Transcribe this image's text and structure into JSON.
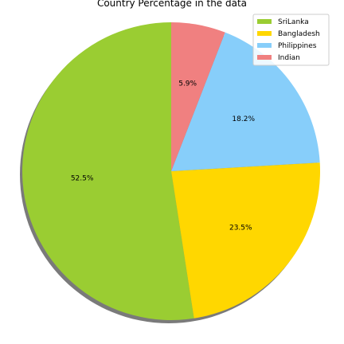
{
  "chart_data": {
    "type": "pie",
    "title": "Country Percentage in the data",
    "labels": [
      "SriLanka",
      "Bangladesh",
      "Philippines",
      "Indian"
    ],
    "values": [
      52.5,
      23.5,
      18.2,
      5.9
    ],
    "value_labels": [
      "52.5%",
      "23.5%",
      "18.2%",
      "5.9%"
    ],
    "colors": [
      "#9acd32",
      "#ffd700",
      "#87cefa",
      "#f08080"
    ],
    "start_angle_deg": 90,
    "direction": "counterclockwise",
    "shadow": true,
    "legend": {
      "placement": "top-right",
      "entries": [
        "SriLanka",
        "Bangladesh",
        "Philippines",
        "Indian"
      ]
    }
  }
}
